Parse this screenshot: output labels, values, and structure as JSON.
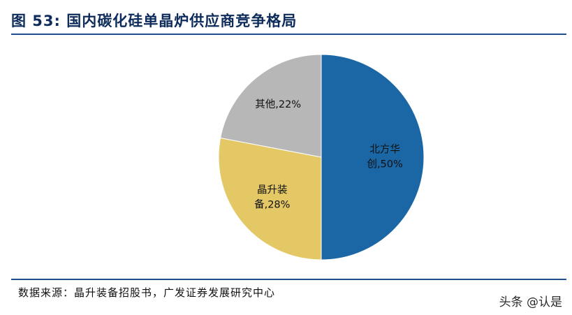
{
  "figure": {
    "title": "图 53:  国内碳化硅单晶炉供应商竞争格局",
    "source": "数据来源：晶升装备招股书，广发证券发展研究中心",
    "watermark": "头条 @认是"
  },
  "chart_data": {
    "type": "pie",
    "title": "",
    "slices": [
      {
        "name": "北方华创",
        "value": 50,
        "label_lines": [
          "北方华",
          "创,50%"
        ],
        "color": "#1b66a5"
      },
      {
        "name": "晶升装备",
        "value": 28,
        "label_lines": [
          "晶升装",
          "备,28%"
        ],
        "color": "#e3c865"
      },
      {
        "name": "其他",
        "value": 22,
        "label_lines": [
          "其他,22%"
        ],
        "color": "#b7b7b7"
      }
    ],
    "start_angle": "12 o'clock",
    "direction": "clockwise",
    "legend": "none",
    "labels": "inside slices"
  }
}
